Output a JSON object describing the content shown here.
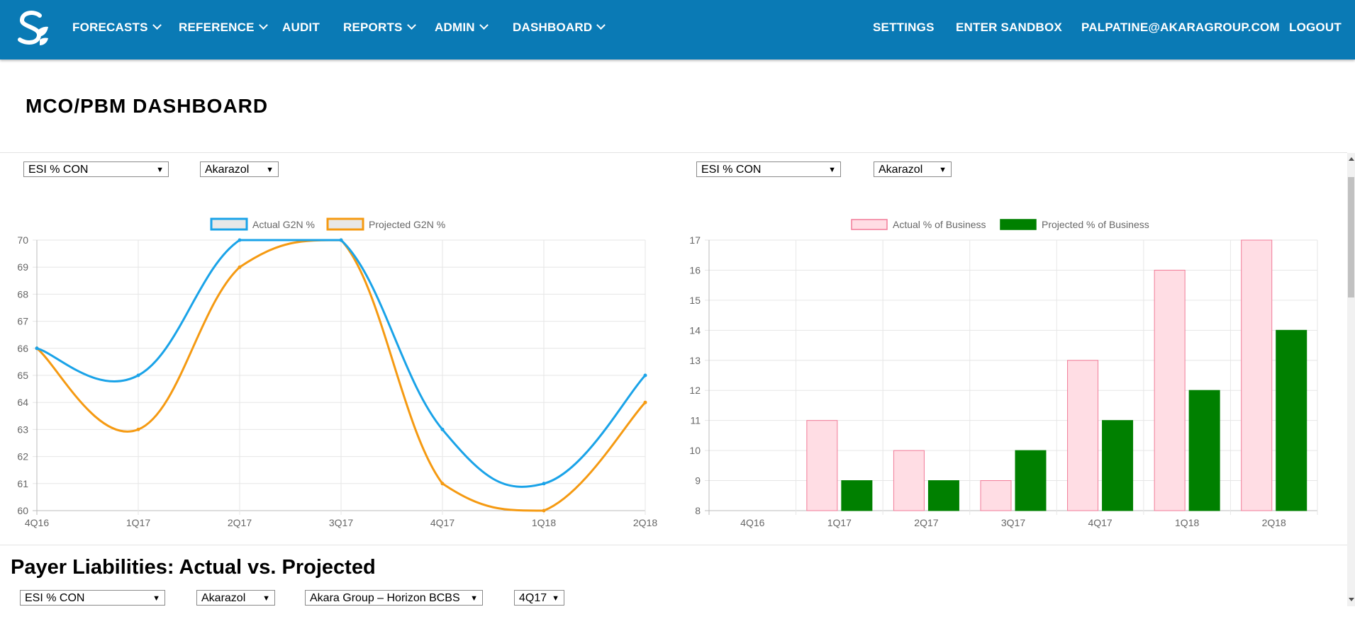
{
  "nav": {
    "left": [
      {
        "label": "FORECASTS",
        "dropdown": true
      },
      {
        "label": "REFERENCE",
        "dropdown": true
      },
      {
        "label": "AUDIT",
        "dropdown": false
      },
      {
        "label": "REPORTS",
        "dropdown": true
      },
      {
        "label": "ADMIN",
        "dropdown": true
      },
      {
        "label": "DASHBOARD",
        "dropdown": true
      }
    ],
    "right": [
      {
        "label": "SETTINGS"
      },
      {
        "label": "ENTER SANDBOX"
      },
      {
        "label": "PALPATINE@AKARAGROUP.COM"
      },
      {
        "label": "LOGOUT"
      }
    ],
    "brand_color": "#0a7ab5"
  },
  "page_title": "MCO/PBM DASHBOARD",
  "filters_left": {
    "metric": "ESI % CON",
    "product": "Akarazol"
  },
  "filters_right": {
    "metric": "ESI % CON",
    "product": "Akarazol"
  },
  "liabilities": {
    "title": "Payer Liabilities: Actual vs. Projected",
    "metric": "ESI % CON",
    "product": "Akarazol",
    "payer": "Akara Group – Horizon BCBS",
    "quarter": "4Q17"
  },
  "chart_data": [
    {
      "type": "line",
      "categories": [
        "4Q16",
        "1Q17",
        "2Q17",
        "3Q17",
        "4Q17",
        "1Q18",
        "2Q18"
      ],
      "ylim": [
        60,
        70
      ],
      "yticks": [
        60,
        61,
        62,
        63,
        64,
        65,
        66,
        67,
        68,
        69,
        70
      ],
      "grid": true,
      "legend": "top-center",
      "series": [
        {
          "name": "Actual G2N %",
          "values": [
            66,
            65,
            70,
            70,
            63,
            61,
            65
          ],
          "color": "#1aa3e8"
        },
        {
          "name": "Projected G2N %",
          "values": [
            66,
            63,
            69,
            70,
            61,
            60,
            64
          ],
          "color": "#f59a12"
        }
      ]
    },
    {
      "type": "bar",
      "categories": [
        "4Q16",
        "1Q17",
        "2Q17",
        "3Q17",
        "4Q17",
        "1Q18",
        "2Q18"
      ],
      "ylim": [
        8,
        17
      ],
      "yticks": [
        8,
        9,
        10,
        11,
        12,
        13,
        14,
        15,
        16,
        17
      ],
      "grid": true,
      "legend": "top-center",
      "series": [
        {
          "name": "Actual % of Business",
          "values": [
            null,
            11,
            10,
            9,
            13,
            16,
            17
          ],
          "color": "#ffdde4",
          "border": "#f27b98"
        },
        {
          "name": "Projected % of Business",
          "values": [
            null,
            9,
            9,
            10,
            11,
            12,
            14
          ],
          "color": "#008000",
          "border": "#008000"
        }
      ]
    }
  ]
}
